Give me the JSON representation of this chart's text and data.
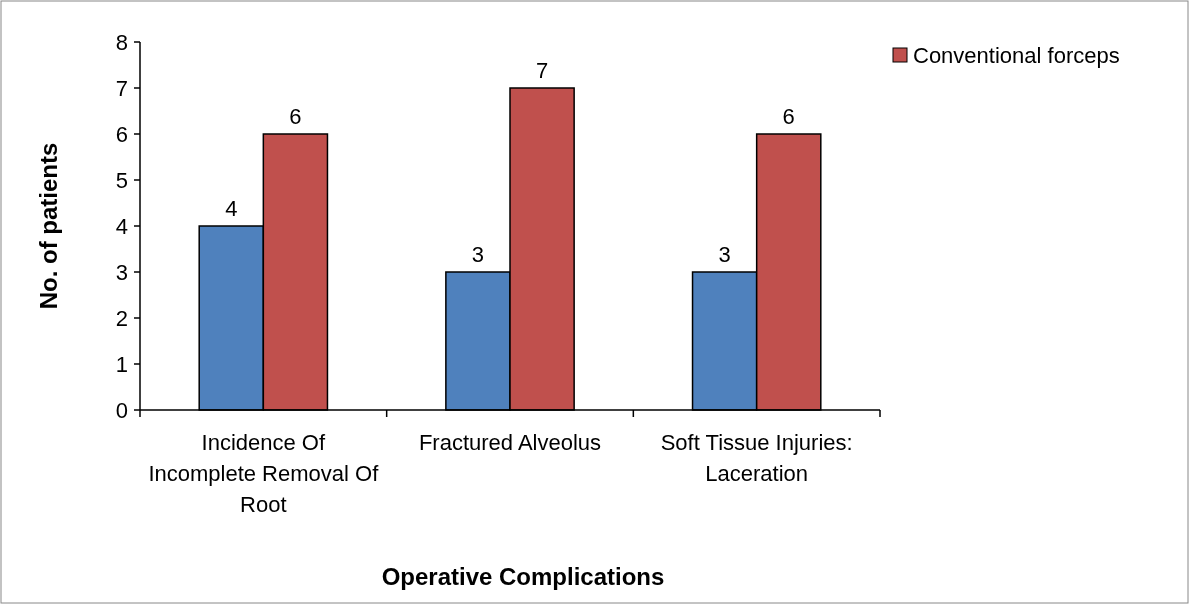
{
  "chart_data": {
    "type": "bar",
    "xlabel": "Operative Complications",
    "ylabel": "No. of patients",
    "categories": [
      "Incidence Of Incomplete Removal Of Root",
      "Fractured Alveolus",
      "Soft Tissue Injuries: Laceration"
    ],
    "series": [
      {
        "color": "#4f81bd",
        "values": [
          4,
          3,
          3
        ]
      },
      {
        "name": "Conventional forceps",
        "color": "#c0504d",
        "values": [
          6,
          7,
          6
        ]
      }
    ],
    "ylim": [
      0,
      8
    ],
    "yticks": [
      0,
      1,
      2,
      3,
      4,
      5,
      6,
      7,
      8
    ],
    "data_labels": true,
    "legend": "right",
    "grid": false
  }
}
